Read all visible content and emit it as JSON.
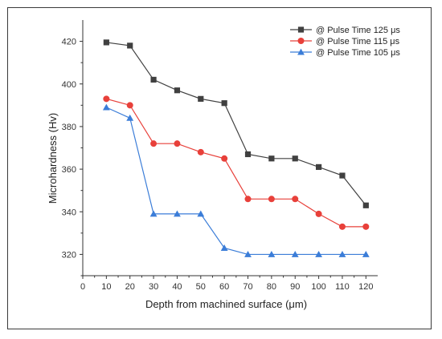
{
  "chart_data": {
    "type": "line",
    "xlabel": "Depth from machined surface (μm)",
    "ylabel": "Microhardness (Hv)",
    "xlim": [
      0,
      125
    ],
    "ylim": [
      310,
      430
    ],
    "xticks": [
      0,
      10,
      20,
      30,
      40,
      50,
      60,
      70,
      80,
      90,
      100,
      110,
      120
    ],
    "yticks": [
      320,
      340,
      360,
      380,
      400,
      420
    ],
    "legend_position": "top-right",
    "grid": false,
    "x": [
      10,
      20,
      30,
      40,
      50,
      60,
      70,
      80,
      90,
      100,
      110,
      120
    ],
    "series": [
      {
        "name": "@ Pulse Time 125 μs",
        "color": "#404040",
        "marker": "square",
        "values": [
          419.5,
          418,
          402,
          397,
          393,
          391,
          367,
          365,
          365,
          361,
          357,
          343
        ]
      },
      {
        "name": "@ Pulse Time 115 μs",
        "color": "#e8403a",
        "marker": "circle",
        "values": [
          393,
          390,
          372,
          372,
          368,
          365,
          346,
          346,
          346,
          339,
          333,
          333
        ]
      },
      {
        "name": "@ Pulse Time 105 μs",
        "color": "#3b7dd8",
        "marker": "triangle",
        "values": [
          389,
          384,
          339,
          339,
          339,
          323,
          320,
          320,
          320,
          320,
          320,
          320
        ]
      }
    ]
  }
}
